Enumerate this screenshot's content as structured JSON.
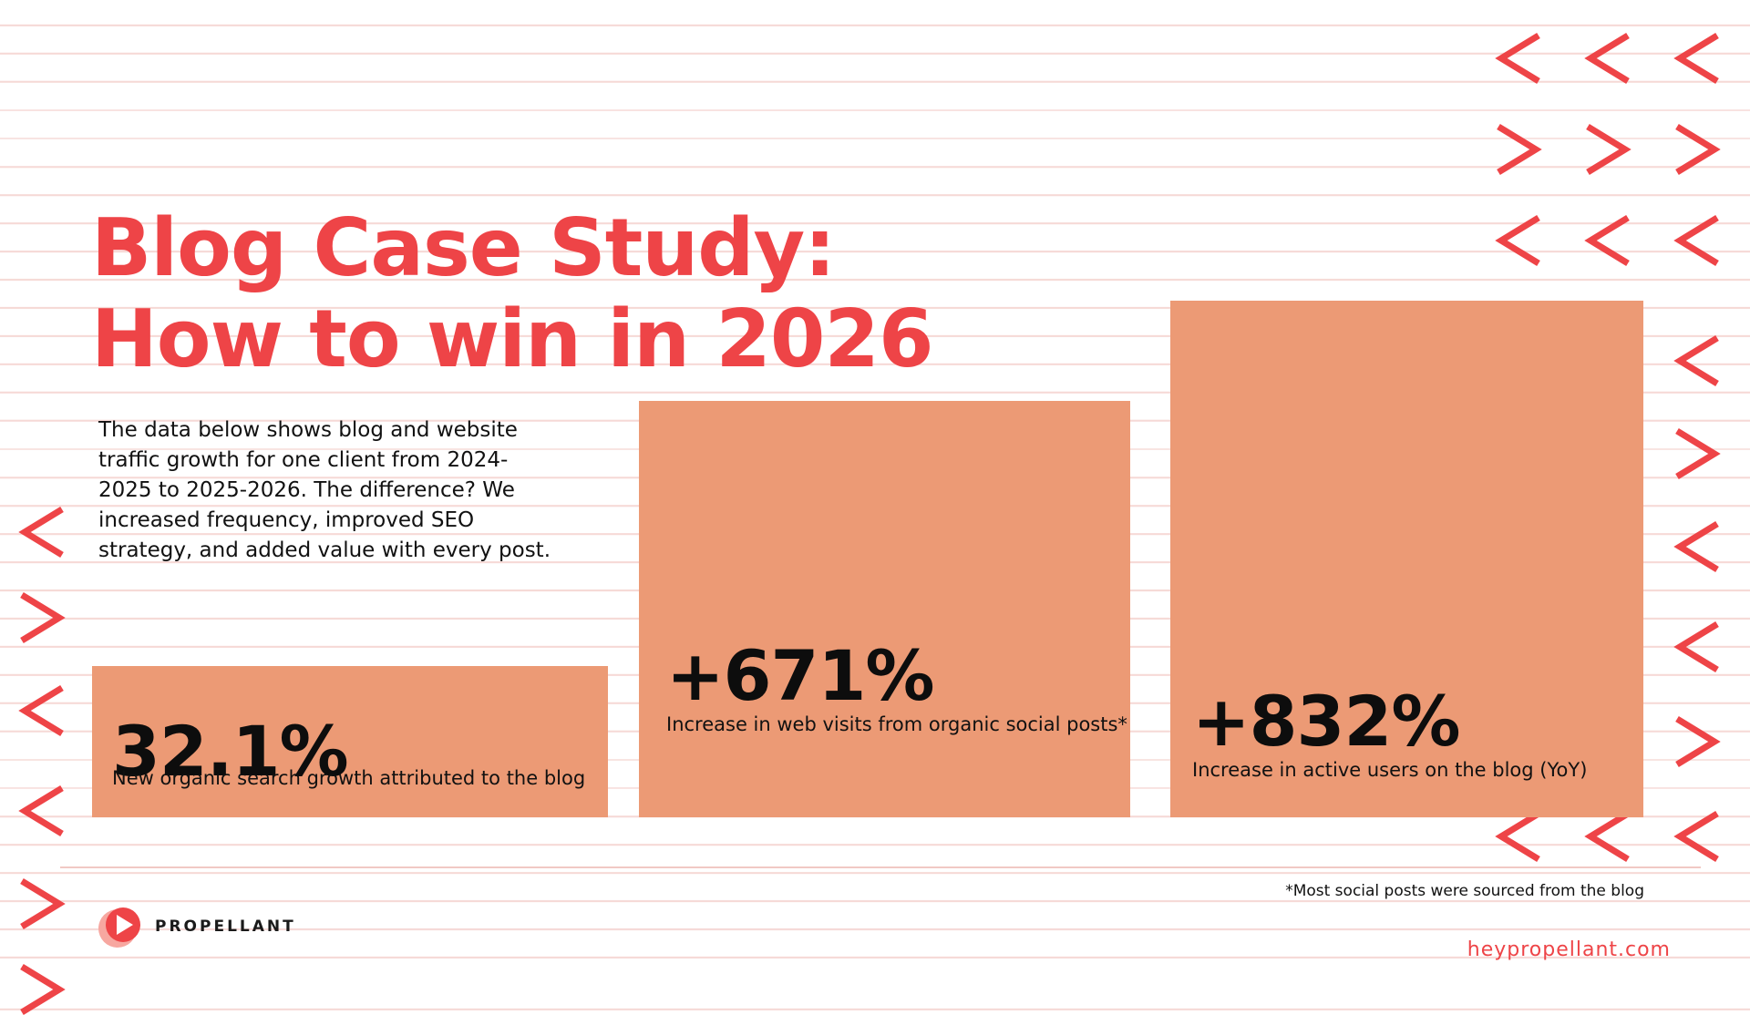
{
  "title": {
    "line1": "Blog Case Study:",
    "line2": "How to win in 2026"
  },
  "description": "The data below shows blog and website traffic growth for one client from 2024-2025 to 2025-2026. The difference? We increased frequency, improved SEO strategy, and added value with every post.",
  "chart_data": {
    "type": "bar",
    "categories": [
      "New organic search growth attributed to the blog",
      "Increase in web visits from organic social posts*",
      "Increase in active users on the blog (YoY)"
    ],
    "values": [
      32.1,
      671,
      832
    ],
    "labels": [
      "32.1%",
      "+671%",
      "+832%"
    ],
    "unit": "%",
    "bar_color": "#ec9a75",
    "grid": false,
    "legend": "none"
  },
  "footnote": "*Most social posts were sourced from the blog",
  "brand": {
    "name": "PROPELLANT",
    "website": "heypropellant.com",
    "logo_icon": "play-icon"
  },
  "colors": {
    "accent": "#ee4447",
    "bar": "#ec9a75",
    "background": "#ffffff",
    "rule_lines": "#f6d9d6"
  }
}
